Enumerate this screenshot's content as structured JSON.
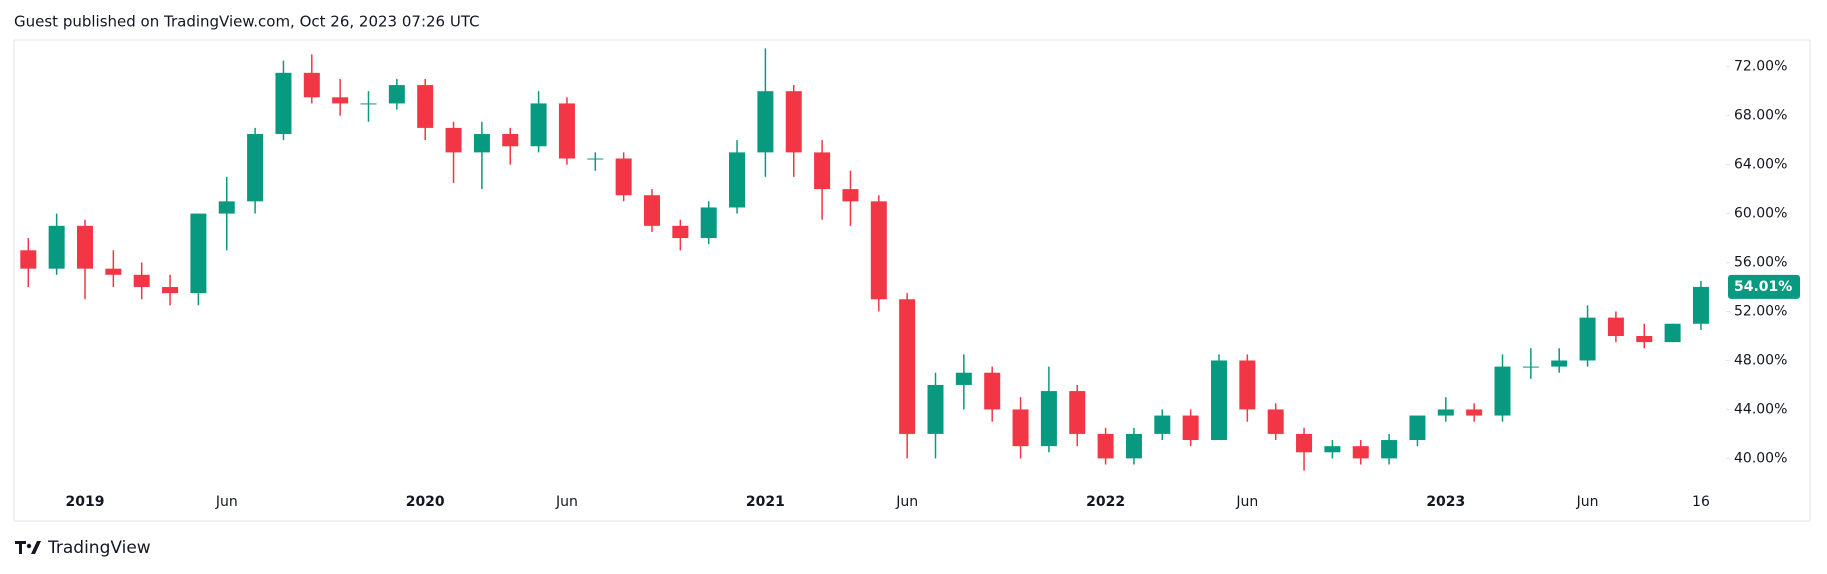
{
  "header": {
    "text": "Guest published on TradingView.com, Oct 26, 2023 07:26 UTC"
  },
  "footer": {
    "brand": "TradingView"
  },
  "chart_data": {
    "type": "candlestick",
    "up_color": "#089981",
    "down_color": "#f23645",
    "categories": [
      null,
      null,
      "2019",
      null,
      null,
      null,
      null,
      "Jun",
      null,
      null,
      null,
      null,
      null,
      null,
      "2020",
      null,
      null,
      null,
      null,
      "Jun",
      null,
      null,
      null,
      null,
      null,
      null,
      "2021",
      null,
      null,
      null,
      null,
      "Jun",
      null,
      null,
      null,
      null,
      null,
      null,
      "2022",
      null,
      null,
      null,
      null,
      "Jun",
      null,
      null,
      null,
      null,
      null,
      null,
      "2023",
      null,
      null,
      null,
      null,
      "Jun",
      null,
      null,
      null,
      "16"
    ],
    "open": [
      57,
      55.5,
      59,
      55.5,
      55,
      54,
      53.5,
      60,
      61,
      66.5,
      71.5,
      69.5,
      69,
      69,
      70.5,
      67,
      65,
      66.5,
      65.5,
      69,
      64.5,
      64.5,
      61.5,
      59,
      58,
      60.5,
      65,
      70,
      65,
      62,
      61,
      53,
      42,
      46,
      47,
      44,
      41,
      45.5,
      42,
      40,
      42,
      43.5,
      41.5,
      48,
      44,
      42,
      40.5,
      41,
      40,
      41.5,
      43.5,
      44,
      43.5,
      47.5,
      47.5,
      48,
      51.5,
      50,
      49.5,
      51
    ],
    "high": [
      58,
      60,
      59.5,
      57,
      56,
      55,
      60,
      63,
      67,
      72.5,
      73,
      71,
      70,
      71,
      71,
      67.5,
      67.5,
      67,
      70,
      69.5,
      65,
      65,
      62,
      59.5,
      61,
      66,
      73.5,
      70.5,
      66,
      63.5,
      61.5,
      53.5,
      47,
      48.5,
      47.5,
      45,
      47.5,
      46,
      42.5,
      42.5,
      44,
      44,
      48.5,
      48.5,
      44.5,
      42.5,
      41.5,
      41.5,
      42,
      43.5,
      45,
      44.5,
      48.5,
      49,
      49,
      52.5,
      52,
      51,
      51,
      54.5
    ],
    "low": [
      54,
      55,
      53,
      54,
      53,
      52.5,
      52.5,
      57,
      60,
      66,
      69,
      68,
      67.5,
      68.5,
      66,
      62.5,
      62,
      64,
      65,
      64,
      63.5,
      61,
      58.5,
      57,
      57.5,
      60,
      63,
      63,
      59.5,
      59,
      52,
      40,
      40,
      44,
      43,
      40,
      40.5,
      41,
      39.5,
      39.5,
      41.5,
      41,
      41.5,
      43,
      41.5,
      39,
      40,
      39.5,
      39.5,
      41,
      43,
      43,
      43,
      46.5,
      47,
      47.5,
      49.5,
      49,
      49.5,
      50.5
    ],
    "close": [
      55.5,
      59,
      55.5,
      55,
      54,
      53.5,
      60,
      61,
      66.5,
      71.5,
      69.5,
      69,
      69,
      70.5,
      67,
      65,
      66.5,
      65.5,
      69,
      64.5,
      64.5,
      61.5,
      59,
      58,
      60.5,
      65,
      70,
      65,
      62,
      61,
      53,
      42,
      46,
      47,
      44,
      41,
      45.5,
      42,
      40,
      42,
      43.5,
      41.5,
      48,
      44,
      42,
      40.5,
      41,
      40,
      41.5,
      43.5,
      44,
      43.5,
      47.5,
      47.5,
      48,
      51.5,
      50,
      49.5,
      51,
      54.01
    ],
    "last_price": {
      "value": 54.01,
      "label": "54.01%"
    },
    "ylim": [
      37.5,
      74.1
    ],
    "yticks": [
      {
        "value": 40,
        "label": "40.00%"
      },
      {
        "value": 44,
        "label": "44.00%"
      },
      {
        "value": 48,
        "label": "48.00%"
      },
      {
        "value": 52,
        "label": "52.00%"
      },
      {
        "value": 56,
        "label": "56.00%"
      },
      {
        "value": 60,
        "label": "60.00%"
      },
      {
        "value": 64,
        "label": "64.00%"
      },
      {
        "value": 68,
        "label": "68.00%"
      },
      {
        "value": 72,
        "label": "72.00%"
      }
    ],
    "grid": false
  }
}
